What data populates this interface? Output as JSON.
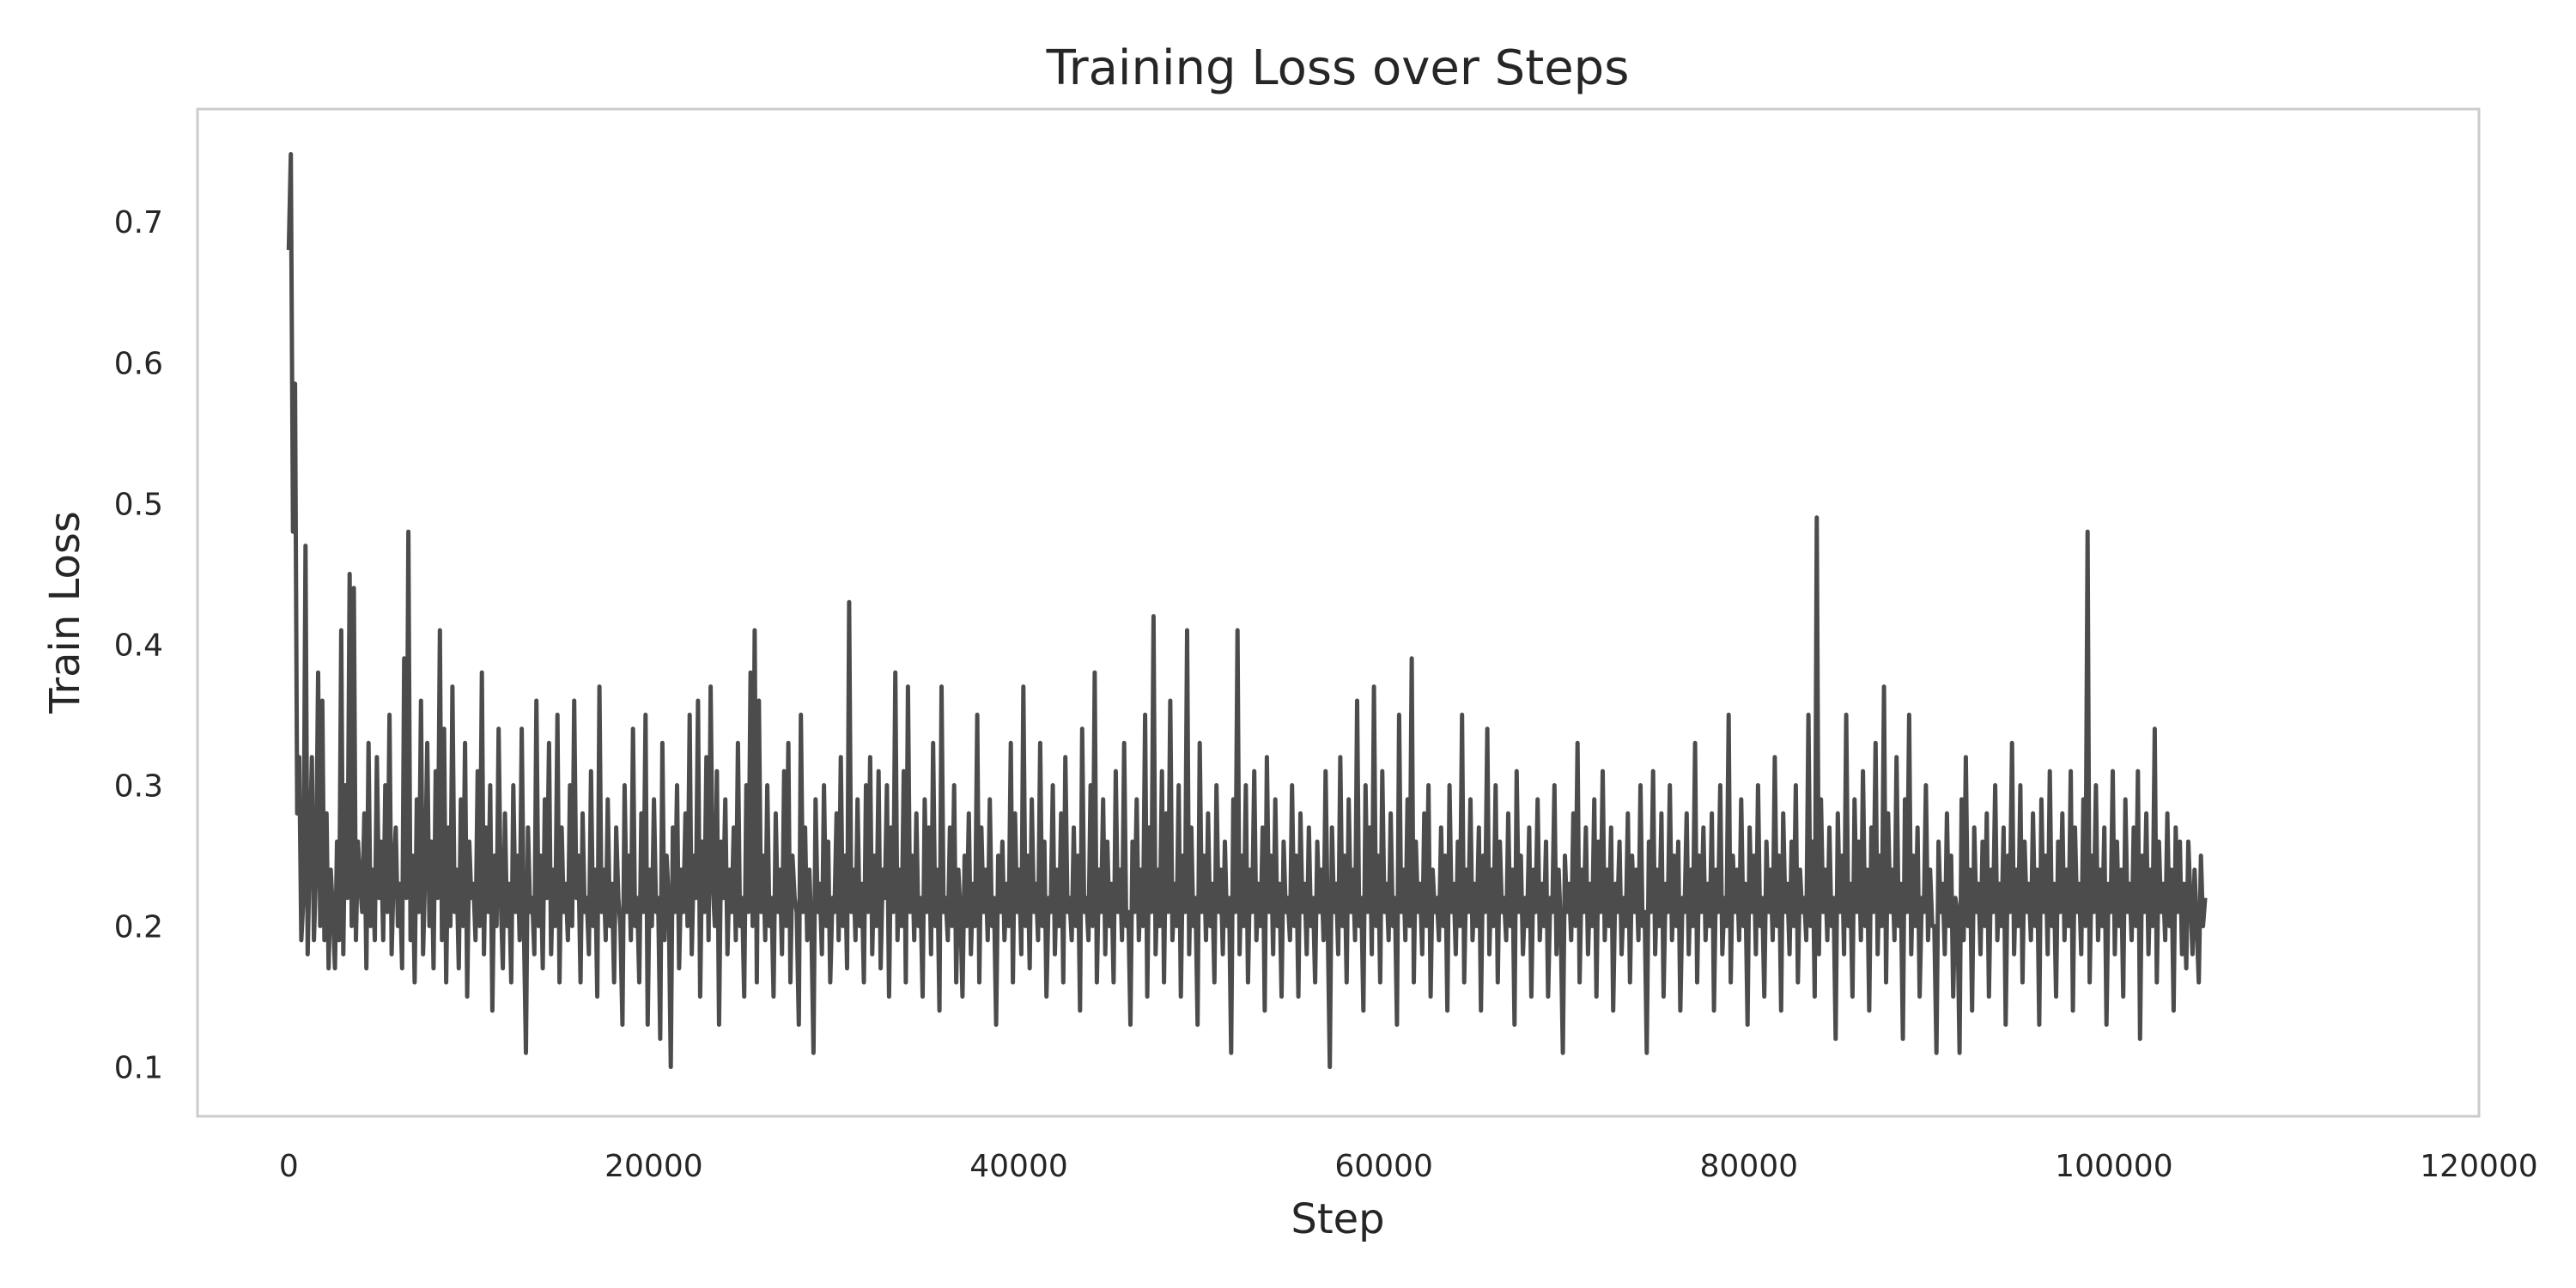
{
  "chart_data": {
    "type": "line",
    "title": "Training Loss over Steps",
    "xlabel": "Step",
    "ylabel": "Train Loss",
    "xlim": [
      -5000,
      120000
    ],
    "ylim": [
      0.065,
      0.78
    ],
    "xticks": [
      0,
      20000,
      40000,
      60000,
      80000,
      100000,
      120000
    ],
    "yticks": [
      0.1,
      0.2,
      0.3,
      0.4,
      0.5,
      0.6,
      0.7
    ],
    "grid": false,
    "legend": "none",
    "line_color": "#4c4c4c",
    "series": [
      {
        "x_start": 0,
        "x_step": 115,
        "values": [
          0.68,
          0.748,
          0.48,
          0.585,
          0.28,
          0.32,
          0.19,
          0.22,
          0.47,
          0.18,
          0.25,
          0.32,
          0.19,
          0.24,
          0.38,
          0.2,
          0.36,
          0.19,
          0.28,
          0.17,
          0.24,
          0.21,
          0.17,
          0.26,
          0.19,
          0.41,
          0.18,
          0.3,
          0.22,
          0.45,
          0.2,
          0.44,
          0.19,
          0.26,
          0.23,
          0.21,
          0.28,
          0.17,
          0.33,
          0.2,
          0.24,
          0.19,
          0.32,
          0.22,
          0.26,
          0.19,
          0.3,
          0.21,
          0.35,
          0.18,
          0.24,
          0.27,
          0.2,
          0.23,
          0.17,
          0.39,
          0.22,
          0.48,
          0.19,
          0.25,
          0.16,
          0.29,
          0.21,
          0.36,
          0.18,
          0.24,
          0.33,
          0.2,
          0.26,
          0.17,
          0.31,
          0.22,
          0.41,
          0.19,
          0.34,
          0.16,
          0.27,
          0.2,
          0.37,
          0.21,
          0.24,
          0.17,
          0.29,
          0.2,
          0.33,
          0.15,
          0.26,
          0.22,
          0.23,
          0.19,
          0.31,
          0.2,
          0.38,
          0.18,
          0.27,
          0.21,
          0.3,
          0.14,
          0.25,
          0.2,
          0.34,
          0.22,
          0.17,
          0.28,
          0.2,
          0.23,
          0.16,
          0.3,
          0.21,
          0.25,
          0.19,
          0.34,
          0.2,
          0.11,
          0.27,
          0.21,
          0.22,
          0.18,
          0.36,
          0.2,
          0.25,
          0.17,
          0.29,
          0.22,
          0.33,
          0.18,
          0.24,
          0.2,
          0.35,
          0.16,
          0.27,
          0.21,
          0.23,
          0.19,
          0.3,
          0.2,
          0.36,
          0.22,
          0.25,
          0.16,
          0.28,
          0.21,
          0.22,
          0.18,
          0.31,
          0.2,
          0.24,
          0.15,
          0.37,
          0.21,
          0.24,
          0.19,
          0.29,
          0.2,
          0.23,
          0.16,
          0.27,
          0.22,
          0.2,
          0.13,
          0.3,
          0.21,
          0.25,
          0.19,
          0.34,
          0.2,
          0.22,
          0.16,
          0.28,
          0.21,
          0.35,
          0.13,
          0.24,
          0.2,
          0.29,
          0.21,
          0.22,
          0.12,
          0.33,
          0.19,
          0.25,
          0.22,
          0.1,
          0.27,
          0.21,
          0.3,
          0.17,
          0.24,
          0.21,
          0.28,
          0.2,
          0.35,
          0.18,
          0.25,
          0.22,
          0.36,
          0.15,
          0.26,
          0.21,
          0.32,
          0.19,
          0.37,
          0.23,
          0.2,
          0.31,
          0.13,
          0.26,
          0.22,
          0.29,
          0.18,
          0.24,
          0.21,
          0.27,
          0.19,
          0.33,
          0.2,
          0.22,
          0.15,
          0.3,
          0.21,
          0.38,
          0.2,
          0.41,
          0.16,
          0.36,
          0.21,
          0.25,
          0.19,
          0.3,
          0.2,
          0.22,
          0.15,
          0.28,
          0.21,
          0.24,
          0.18,
          0.31,
          0.2,
          0.33,
          0.16,
          0.25,
          0.22,
          0.21,
          0.13,
          0.35,
          0.21,
          0.27,
          0.19,
          0.24,
          0.2,
          0.11,
          0.29,
          0.21,
          0.23,
          0.18,
          0.3,
          0.2,
          0.26,
          0.16,
          0.22,
          0.21,
          0.28,
          0.19,
          0.32,
          0.2,
          0.25,
          0.17,
          0.43,
          0.21,
          0.24,
          0.19,
          0.29,
          0.2,
          0.23,
          0.16,
          0.3,
          0.21,
          0.32,
          0.18,
          0.25,
          0.2,
          0.31,
          0.17,
          0.24,
          0.22,
          0.3,
          0.15,
          0.27,
          0.21,
          0.38,
          0.19,
          0.24,
          0.2,
          0.31,
          0.16,
          0.37,
          0.21,
          0.25,
          0.19,
          0.28,
          0.2,
          0.22,
          0.15,
          0.29,
          0.21,
          0.27,
          0.18,
          0.33,
          0.2,
          0.24,
          0.14,
          0.37,
          0.21,
          0.22,
          0.19,
          0.27,
          0.2,
          0.3,
          0.16,
          0.24,
          0.21,
          0.15,
          0.25,
          0.2,
          0.28,
          0.18,
          0.23,
          0.2,
          0.35,
          0.16,
          0.27,
          0.21,
          0.24,
          0.19,
          0.29,
          0.2,
          0.22,
          0.13,
          0.25,
          0.21,
          0.26,
          0.19,
          0.23,
          0.2,
          0.33,
          0.16,
          0.28,
          0.21,
          0.24,
          0.18,
          0.37,
          0.2,
          0.25,
          0.17,
          0.29,
          0.21,
          0.23,
          0.19,
          0.33,
          0.2,
          0.26,
          0.15,
          0.22,
          0.21,
          0.3,
          0.18,
          0.24,
          0.2,
          0.28,
          0.16,
          0.32,
          0.21,
          0.22,
          0.19,
          0.27,
          0.2,
          0.25,
          0.14,
          0.34,
          0.21,
          0.22,
          0.19,
          0.3,
          0.2,
          0.38,
          0.16,
          0.24,
          0.21,
          0.29,
          0.18,
          0.26,
          0.2,
          0.23,
          0.16,
          0.31,
          0.21,
          0.24,
          0.19,
          0.33,
          0.2,
          0.21,
          0.13,
          0.26,
          0.21,
          0.29,
          0.19,
          0.24,
          0.2,
          0.35,
          0.15,
          0.27,
          0.21,
          0.42,
          0.18,
          0.24,
          0.2,
          0.31,
          0.16,
          0.28,
          0.21,
          0.36,
          0.19,
          0.23,
          0.2,
          0.3,
          0.15,
          0.25,
          0.21,
          0.41,
          0.18,
          0.27,
          0.2,
          0.22,
          0.13,
          0.33,
          0.21,
          0.25,
          0.19,
          0.28,
          0.2,
          0.23,
          0.16,
          0.3,
          0.21,
          0.24,
          0.18,
          0.26,
          0.2,
          0.22,
          0.11,
          0.29,
          0.21,
          0.41,
          0.18,
          0.25,
          0.2,
          0.3,
          0.16,
          0.24,
          0.21,
          0.31,
          0.19,
          0.23,
          0.2,
          0.27,
          0.14,
          0.32,
          0.21,
          0.25,
          0.18,
          0.29,
          0.2,
          0.23,
          0.15,
          0.26,
          0.21,
          0.22,
          0.19,
          0.3,
          0.2,
          0.25,
          0.15,
          0.28,
          0.21,
          0.23,
          0.18,
          0.27,
          0.2,
          0.22,
          0.16,
          0.26,
          0.21,
          0.24,
          0.19,
          0.31,
          0.2,
          0.1,
          0.27,
          0.21,
          0.23,
          0.18,
          0.32,
          0.2,
          0.25,
          0.16,
          0.29,
          0.21,
          0.24,
          0.19,
          0.36,
          0.2,
          0.22,
          0.14,
          0.3,
          0.21,
          0.27,
          0.18,
          0.37,
          0.2,
          0.25,
          0.16,
          0.31,
          0.21,
          0.23,
          0.19,
          0.28,
          0.2,
          0.22,
          0.13,
          0.35,
          0.21,
          0.24,
          0.19,
          0.29,
          0.2,
          0.39,
          0.16,
          0.26,
          0.21,
          0.23,
          0.18,
          0.28,
          0.2,
          0.3,
          0.15,
          0.24,
          0.21,
          0.22,
          0.19,
          0.27,
          0.2,
          0.25,
          0.14,
          0.3,
          0.21,
          0.23,
          0.18,
          0.26,
          0.2,
          0.35,
          0.16,
          0.24,
          0.21,
          0.29,
          0.19,
          0.23,
          0.2,
          0.27,
          0.14,
          0.25,
          0.21,
          0.34,
          0.18,
          0.24,
          0.2,
          0.3,
          0.16,
          0.26,
          0.21,
          0.22,
          0.19,
          0.28,
          0.2,
          0.24,
          0.13,
          0.31,
          0.21,
          0.25,
          0.18,
          0.22,
          0.2,
          0.27,
          0.15,
          0.24,
          0.21,
          0.29,
          0.19,
          0.23,
          0.2,
          0.26,
          0.15,
          0.22,
          0.21,
          0.3,
          0.18,
          0.24,
          0.2,
          0.11,
          0.25,
          0.21,
          0.23,
          0.19,
          0.28,
          0.2,
          0.33,
          0.16,
          0.24,
          0.21,
          0.27,
          0.18,
          0.23,
          0.2,
          0.29,
          0.15,
          0.26,
          0.21,
          0.31,
          0.19,
          0.24,
          0.2,
          0.27,
          0.14,
          0.23,
          0.21,
          0.26,
          0.18,
          0.22,
          0.2,
          0.28,
          0.16,
          0.25,
          0.21,
          0.24,
          0.19,
          0.3,
          0.2,
          0.21,
          0.11,
          0.26,
          0.21,
          0.31,
          0.18,
          0.24,
          0.2,
          0.28,
          0.15,
          0.23,
          0.21,
          0.3,
          0.19,
          0.25,
          0.2,
          0.26,
          0.14,
          0.22,
          0.21,
          0.28,
          0.18,
          0.24,
          0.2,
          0.33,
          0.16,
          0.25,
          0.21,
          0.27,
          0.19,
          0.23,
          0.2,
          0.28,
          0.14,
          0.24,
          0.21,
          0.3,
          0.18,
          0.22,
          0.2,
          0.35,
          0.16,
          0.25,
          0.21,
          0.24,
          0.19,
          0.29,
          0.2,
          0.23,
          0.13,
          0.27,
          0.21,
          0.25,
          0.18,
          0.3,
          0.2,
          0.22,
          0.15,
          0.26,
          0.21,
          0.24,
          0.19,
          0.32,
          0.2,
          0.25,
          0.14,
          0.28,
          0.21,
          0.23,
          0.18,
          0.26,
          0.2,
          0.3,
          0.16,
          0.24,
          0.21,
          0.22,
          0.19,
          0.35,
          0.2,
          0.26,
          0.15,
          0.49,
          0.18,
          0.29,
          0.21,
          0.24,
          0.19,
          0.27,
          0.2,
          0.22,
          0.12,
          0.28,
          0.21,
          0.25,
          0.18,
          0.35,
          0.2,
          0.23,
          0.15,
          0.29,
          0.21,
          0.26,
          0.19,
          0.31,
          0.2,
          0.24,
          0.14,
          0.27,
          0.21,
          0.33,
          0.18,
          0.25,
          0.2,
          0.37,
          0.16,
          0.28,
          0.21,
          0.24,
          0.19,
          0.32,
          0.2,
          0.23,
          0.12,
          0.29,
          0.21,
          0.35,
          0.18,
          0.25,
          0.2,
          0.27,
          0.15,
          0.22,
          0.21,
          0.3,
          0.19,
          0.24,
          0.2,
          0.2,
          0.11,
          0.26,
          0.21,
          0.23,
          0.18,
          0.28,
          0.2,
          0.25,
          0.15,
          0.22,
          0.21,
          0.11,
          0.29,
          0.19,
          0.32,
          0.2,
          0.24,
          0.14,
          0.27,
          0.21,
          0.23,
          0.18,
          0.26,
          0.2,
          0.28,
          0.15,
          0.24,
          0.21,
          0.3,
          0.19,
          0.23,
          0.2,
          0.27,
          0.13,
          0.25,
          0.21,
          0.33,
          0.18,
          0.24,
          0.2,
          0.3,
          0.16,
          0.26,
          0.21,
          0.23,
          0.19,
          0.28,
          0.2,
          0.24,
          0.13,
          0.29,
          0.21,
          0.25,
          0.18,
          0.31,
          0.2,
          0.23,
          0.15,
          0.26,
          0.21,
          0.28,
          0.19,
          0.24,
          0.2,
          0.31,
          0.14,
          0.27,
          0.21,
          0.23,
          0.18,
          0.29,
          0.2,
          0.48,
          0.16,
          0.25,
          0.21,
          0.3,
          0.19,
          0.24,
          0.2,
          0.27,
          0.13,
          0.23,
          0.21,
          0.31,
          0.18,
          0.26,
          0.2,
          0.24,
          0.15,
          0.29,
          0.21,
          0.23,
          0.19,
          0.27,
          0.2,
          0.31,
          0.12,
          0.25,
          0.21,
          0.28,
          0.18,
          0.24,
          0.2,
          0.34,
          0.16,
          0.26,
          0.21,
          0.23,
          0.19,
          0.28,
          0.2,
          0.24,
          0.14,
          0.27,
          0.21,
          0.26,
          0.18,
          0.23,
          0.17,
          0.26,
          0.22,
          0.18,
          0.24,
          0.2,
          0.16,
          0.25,
          0.2,
          0.22
        ]
      }
    ]
  }
}
